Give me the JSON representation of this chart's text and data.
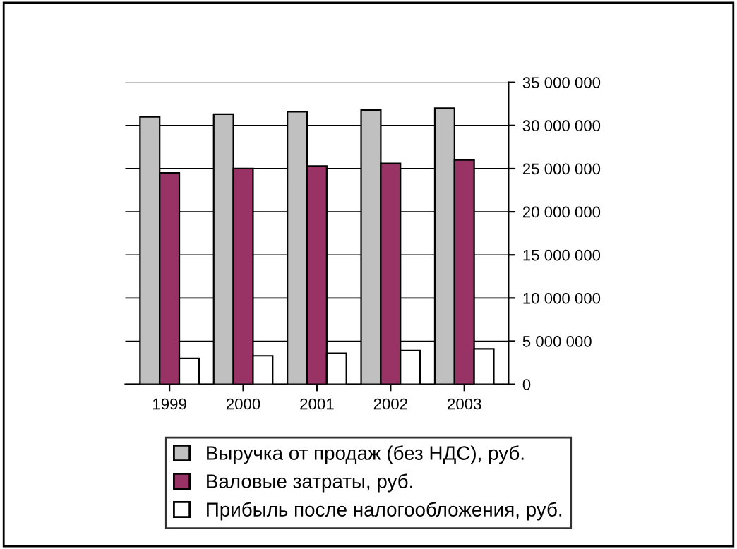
{
  "chart_data": {
    "type": "bar",
    "categories": [
      "1999",
      "2000",
      "2001",
      "2002",
      "2003"
    ],
    "series": [
      {
        "name": "Выручка от продаж (без НДС), руб.",
        "color": "#c0c0c0",
        "values": [
          31000000,
          31300000,
          31600000,
          31800000,
          32000000
        ]
      },
      {
        "name": "Валовые затраты, руб.",
        "color": "#993366",
        "values": [
          24500000,
          25000000,
          25300000,
          25600000,
          26000000
        ]
      },
      {
        "name": "Прибыль после налогообложения, руб.",
        "color": "#ffffff",
        "values": [
          3000000,
          3300000,
          3600000,
          3900000,
          4100000
        ]
      }
    ],
    "ylim": [
      0,
      35000000
    ],
    "yticks": [
      {
        "value": 0,
        "label": "0"
      },
      {
        "value": 5000000,
        "label": "5 000 000"
      },
      {
        "value": 10000000,
        "label": "10 000 000"
      },
      {
        "value": 15000000,
        "label": "15 000 000"
      },
      {
        "value": 20000000,
        "label": "20 000 000"
      },
      {
        "value": 25000000,
        "label": "25 000 000"
      },
      {
        "value": 30000000,
        "label": "30 000 000"
      },
      {
        "value": 35000000,
        "label": "35 000 000"
      }
    ],
    "grid": "y",
    "legend": "bottom"
  }
}
